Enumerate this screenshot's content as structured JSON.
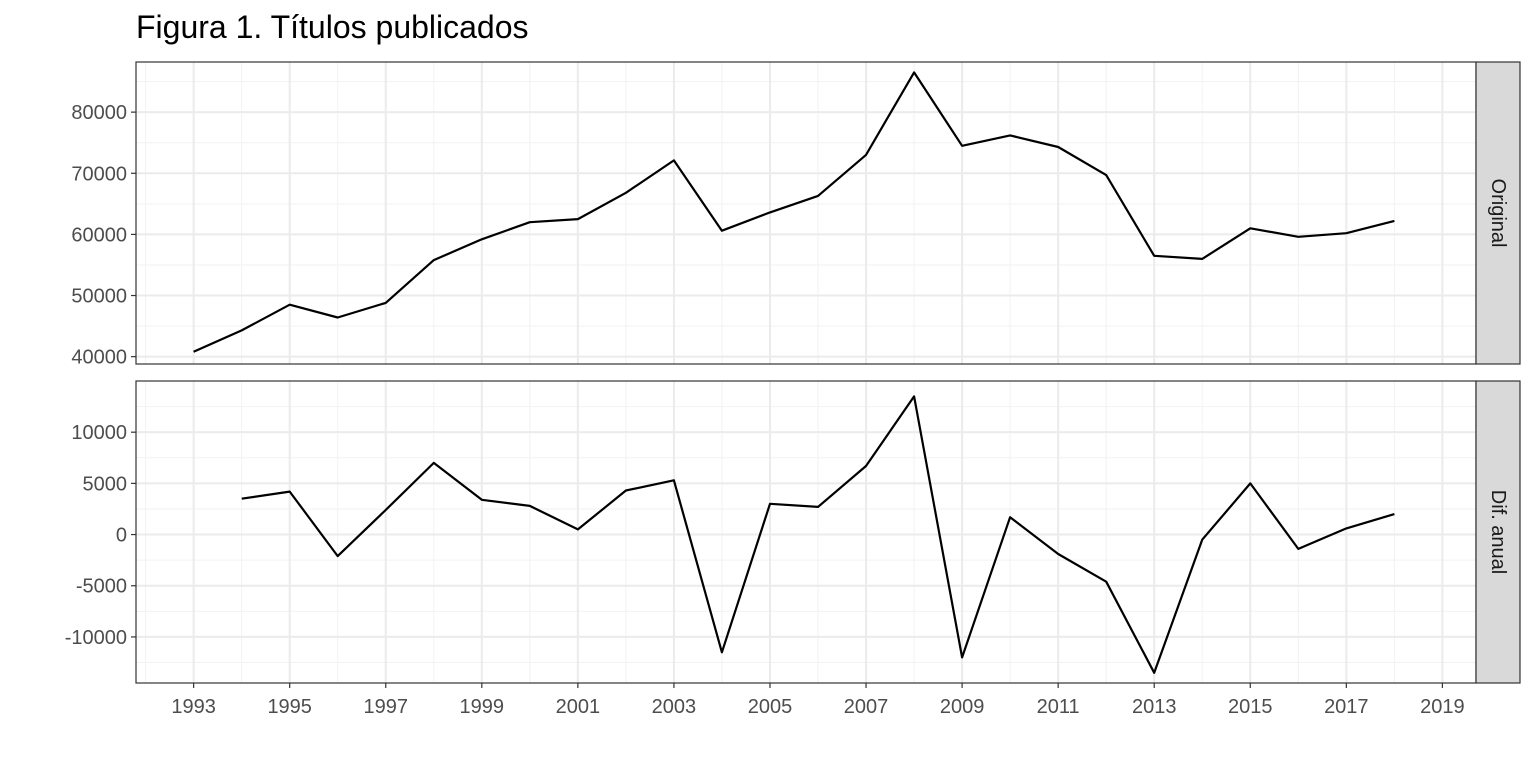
{
  "chart_data": {
    "type": "line",
    "title": "Figura 1. Títulos publicados",
    "xlabel": "",
    "ylabel": "",
    "x_range": [
      1991.8,
      2019.7
    ],
    "x_ticks": [
      "1993",
      "1995",
      "1997",
      "1999",
      "2001",
      "2003",
      "2005",
      "2007",
      "2009",
      "2011",
      "2013",
      "2015",
      "2017",
      "2019"
    ],
    "grid": true,
    "legend": "none",
    "panels": [
      {
        "strip_label": "Original",
        "ylim": [
          38800,
          88200
        ],
        "y_ticks": [
          "40000",
          "50000",
          "60000",
          "70000",
          "80000"
        ],
        "x": [
          1993,
          1994,
          1995,
          1996,
          1997,
          1998,
          1999,
          2000,
          2001,
          2002,
          2003,
          2004,
          2005,
          2006,
          2007,
          2008,
          2009,
          2010,
          2011,
          2012,
          2013,
          2014,
          2015,
          2016,
          2017,
          2018
        ],
        "values": [
          40800,
          44300,
          48500,
          46400,
          48800,
          55800,
          59200,
          62000,
          62500,
          66800,
          72100,
          60600,
          63600,
          66300,
          73000,
          86500,
          74500,
          76200,
          74300,
          69700,
          56500,
          56000,
          61000,
          59600,
          60200,
          62200
        ]
      },
      {
        "strip_label": "Dif. anual",
        "ylim": [
          -14500,
          15000
        ],
        "y_ticks": [
          "-10000",
          "-5000",
          "0",
          "5000",
          "10000"
        ],
        "x": [
          1994,
          1995,
          1996,
          1997,
          1998,
          1999,
          2000,
          2001,
          2002,
          2003,
          2004,
          2005,
          2006,
          2007,
          2008,
          2009,
          2010,
          2011,
          2012,
          2013,
          2014,
          2015,
          2016,
          2017,
          2018
        ],
        "values": [
          3500,
          4200,
          -2100,
          2400,
          7000,
          3400,
          2800,
          500,
          4300,
          5300,
          -11500,
          3000,
          2700,
          6700,
          13500,
          -12000,
          1700,
          -1900,
          -4600,
          -13500,
          -500,
          5000,
          -1400,
          600,
          2000
        ]
      }
    ]
  }
}
